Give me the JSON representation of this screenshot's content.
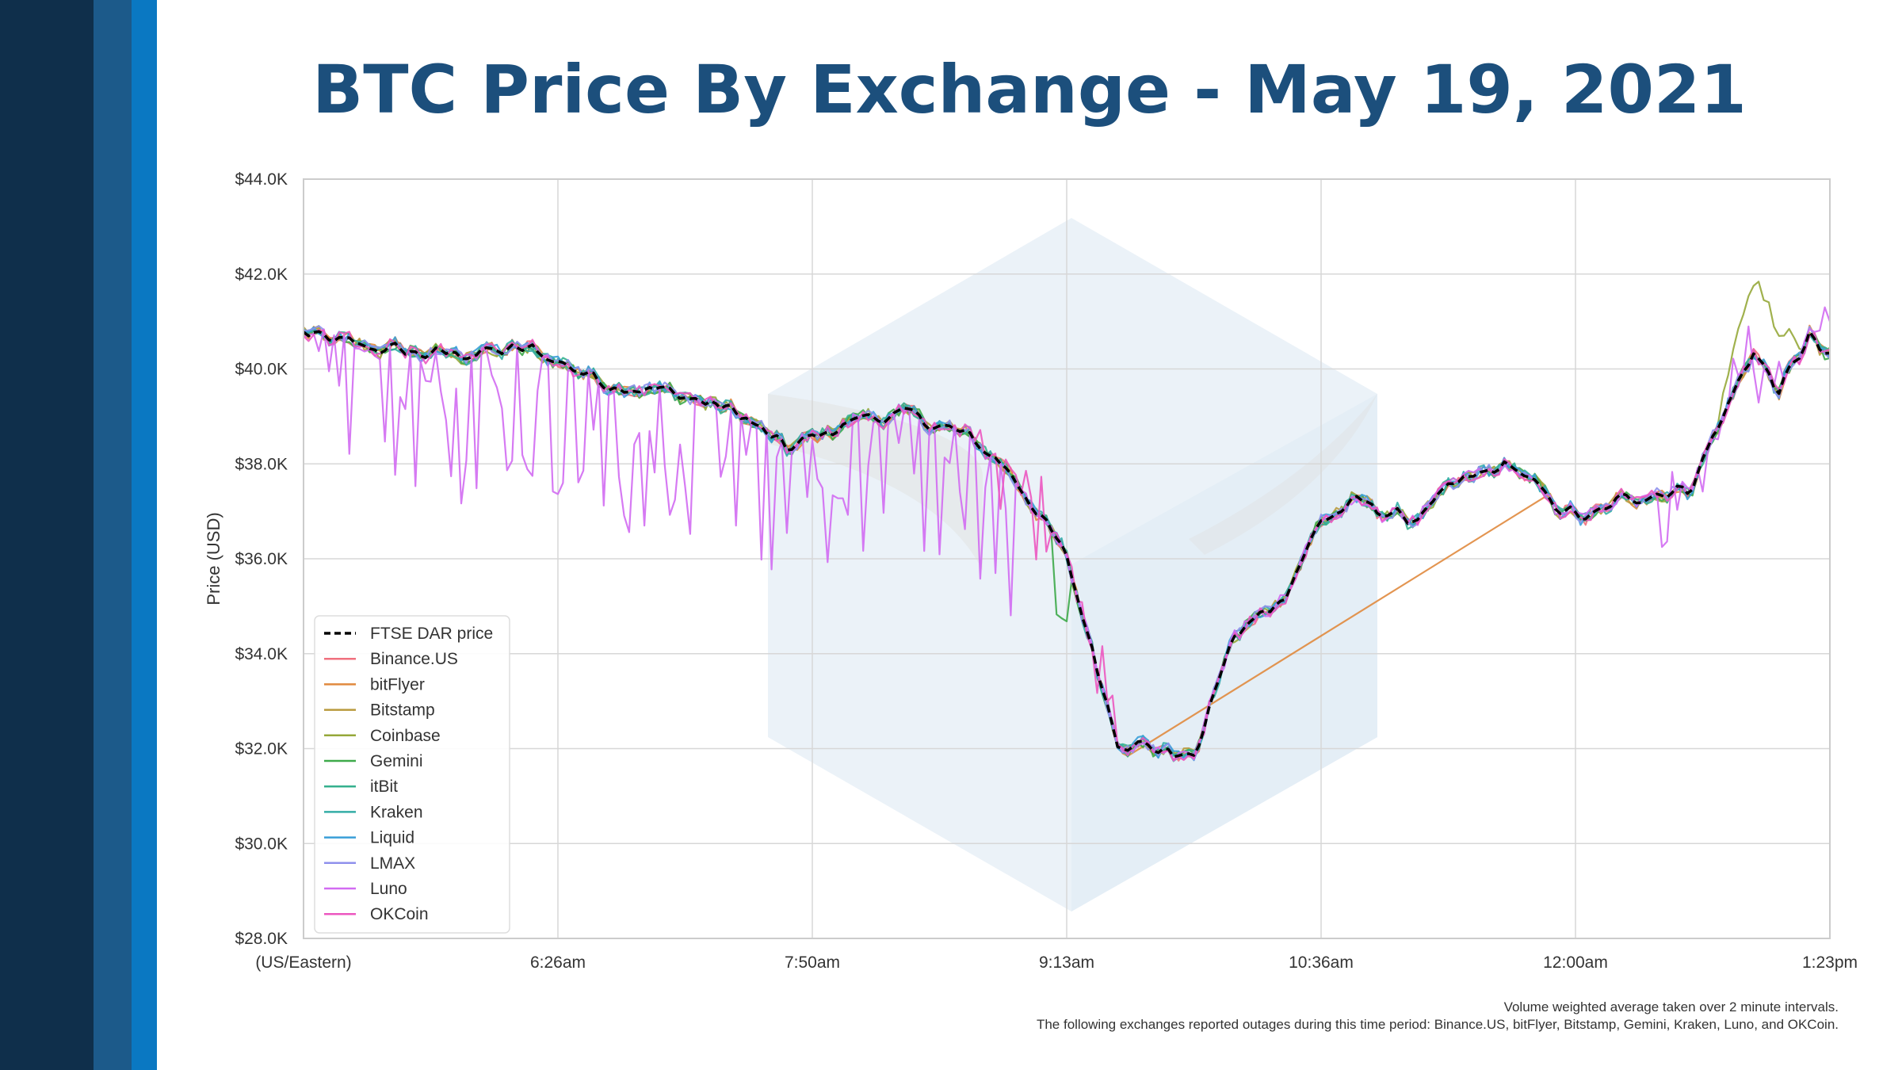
{
  "title": "BTC Price By Exchange - May 19, 2021",
  "footnote": {
    "line1": "Volume weighted average taken over 2 minute intervals.",
    "line2": "The following exchanges reported outages during this time period: Binance.US, bitFlyer, Bitstamp, Gemini, Kraken, Luno, and OKCoin."
  },
  "colors": {
    "sidebar_dark": "#0f2f4b",
    "sidebar_mid": "#1c5a8a",
    "sidebar_light": "#0a78c2",
    "title": "#1c4f7c"
  },
  "chart_data": {
    "type": "line",
    "title": "",
    "xlabel": "",
    "ylabel": "Price (USD)",
    "ylim": [
      28000,
      44000
    ],
    "yticks": [
      {
        "value": 28000,
        "label": "$28.0K"
      },
      {
        "value": 30000,
        "label": "$30.0K"
      },
      {
        "value": 32000,
        "label": "$32.0K"
      },
      {
        "value": 34000,
        "label": "$34.0K"
      },
      {
        "value": 36000,
        "label": "$36.0K"
      },
      {
        "value": 38000,
        "label": "$38.0K"
      },
      {
        "value": 40000,
        "label": "$40.0K"
      },
      {
        "value": 42000,
        "label": "$42.0K"
      },
      {
        "value": 44000,
        "label": "$44.0K"
      }
    ],
    "xticks": [
      "(US/Eastern)",
      "6:26am",
      "7:50am",
      "9:13am",
      "10:36am",
      "12:00am",
      "1:23pm"
    ],
    "grid": true,
    "legend_position": "lower-left",
    "x_label_note": "x positions are indices on the 0–6 tick scale",
    "base": {
      "x": [
        0,
        0.2,
        0.5,
        0.9,
        1.2,
        1.45,
        1.7,
        1.9,
        2.2,
        2.4,
        2.6,
        2.75,
        2.85,
        3.0,
        3.2,
        3.5,
        3.65,
        3.85,
        4.0,
        4.15,
        4.35,
        4.55,
        4.75,
        4.9,
        5.05,
        5.2,
        5.45,
        5.7,
        5.8,
        5.92,
        6.0
      ],
      "y": [
        40700,
        40500,
        40300,
        40400,
        39700,
        39500,
        39100,
        38300,
        39000,
        39000,
        38600,
        38000,
        37300,
        36000,
        32200,
        31800,
        34300,
        35200,
        36800,
        37200,
        36800,
        37600,
        38000,
        37200,
        36800,
        37300,
        37500,
        40400,
        39500,
        40700,
        40100
      ]
    },
    "series": [
      {
        "name": "FTSE DAR price",
        "color": "#000000",
        "dash": true
      },
      {
        "name": "Binance.US",
        "color": "#f0707e"
      },
      {
        "name": "bitFlyer",
        "color": "#e0893e"
      },
      {
        "name": "Bitstamp",
        "color": "#b99a3d"
      },
      {
        "name": "Coinbase",
        "color": "#96a83a"
      },
      {
        "name": "Gemini",
        "color": "#3eaa4a"
      },
      {
        "name": "itBit",
        "color": "#35b08e"
      },
      {
        "name": "Kraken",
        "color": "#34ada6"
      },
      {
        "name": "Liquid",
        "color": "#3a9fd8"
      },
      {
        "name": "LMAX",
        "color": "#8f90ec"
      },
      {
        "name": "Luno",
        "color": "#d26bf2"
      },
      {
        "name": "OKCoin",
        "color": "#ec57c0"
      }
    ]
  }
}
